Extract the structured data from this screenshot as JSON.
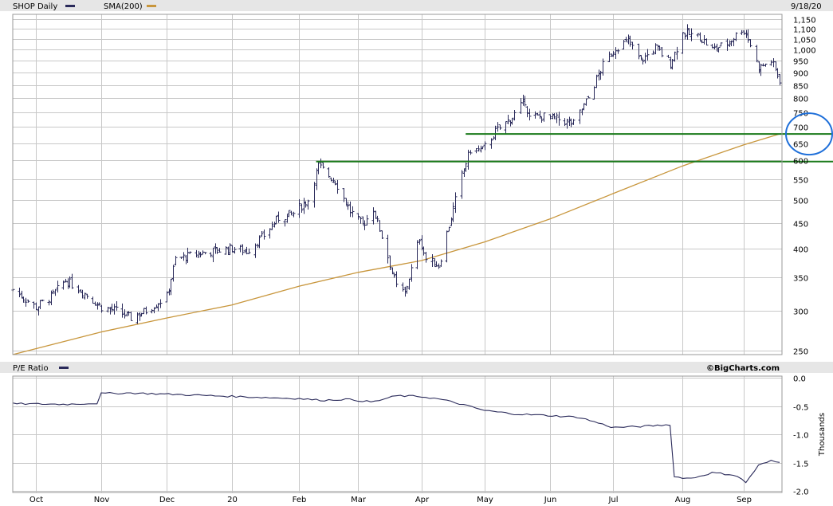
{
  "header": {
    "symbol_label": "SHOP Daily",
    "sma_label": "SMA(200)",
    "date": "9/18/20",
    "pe_label": "P/E Ratio",
    "credit": "©BigCharts.com"
  },
  "colors": {
    "price": "#2a2a5a",
    "sma": "#c8963c",
    "pe": "#2a2a5a",
    "support": "#1a7a1a",
    "annotation": "#1e6fd9",
    "header_bg": "#e6e6e6"
  },
  "chart_data": [
    {
      "type": "ohlc",
      "title": "SHOP Daily",
      "scale": "log",
      "ylim": [
        245,
        1160
      ],
      "yticks": [
        250,
        300,
        350,
        400,
        450,
        500,
        550,
        600,
        650,
        700,
        750,
        800,
        850,
        900,
        950,
        1000,
        1050,
        1100,
        1150
      ],
      "ytick_labels": [
        "250",
        "300",
        "350",
        "400",
        "450",
        "500",
        "550",
        "600",
        "650",
        "700",
        "750",
        "800",
        "850",
        "900",
        "950",
        "1,000",
        "1,050",
        "1,100",
        "1,150"
      ],
      "x_start": "2019-09-20",
      "x_end": "2020-09-18",
      "x_month_ticks": [
        {
          "date": "2019-10-01",
          "label": "Oct"
        },
        {
          "date": "2019-11-01",
          "label": "Nov"
        },
        {
          "date": "2019-12-02",
          "label": "Dec"
        },
        {
          "date": "2020-01-02",
          "label": "20"
        },
        {
          "date": "2020-02-03",
          "label": "Feb"
        },
        {
          "date": "2020-03-02",
          "label": "Mar"
        },
        {
          "date": "2020-04-01",
          "label": "Apr"
        },
        {
          "date": "2020-05-01",
          "label": "May"
        },
        {
          "date": "2020-06-01",
          "label": "Jun"
        },
        {
          "date": "2020-07-01",
          "label": "Jul"
        },
        {
          "date": "2020-08-03",
          "label": "Aug"
        },
        {
          "date": "2020-09-01",
          "label": "Sep"
        }
      ],
      "price_anchors": [
        [
          "2019-09-20",
          330
        ],
        [
          "2019-10-01",
          305
        ],
        [
          "2019-10-08",
          320
        ],
        [
          "2019-10-15",
          345
        ],
        [
          "2019-10-22",
          330
        ],
        [
          "2019-11-01",
          305
        ],
        [
          "2019-11-08",
          300
        ],
        [
          "2019-11-15",
          290
        ],
        [
          "2019-11-22",
          300
        ],
        [
          "2019-12-02",
          320
        ],
        [
          "2019-12-06",
          380
        ],
        [
          "2019-12-16",
          390
        ],
        [
          "2020-01-02",
          400
        ],
        [
          "2020-01-09",
          395
        ],
        [
          "2020-01-16",
          420
        ],
        [
          "2020-01-24",
          460
        ],
        [
          "2020-01-31",
          470
        ],
        [
          "2020-02-07",
          500
        ],
        [
          "2020-02-12",
          585
        ],
        [
          "2020-02-20",
          545
        ],
        [
          "2020-02-27",
          475
        ],
        [
          "2020-03-04",
          445
        ],
        [
          "2020-03-09",
          480
        ],
        [
          "2020-03-16",
          385
        ],
        [
          "2020-03-20",
          335
        ],
        [
          "2020-03-24",
          325
        ],
        [
          "2020-03-31",
          420
        ],
        [
          "2020-04-03",
          380
        ],
        [
          "2020-04-09",
          370
        ],
        [
          "2020-04-14",
          445
        ],
        [
          "2020-04-20",
          560
        ],
        [
          "2020-04-24",
          630
        ],
        [
          "2020-04-30",
          630
        ],
        [
          "2020-05-06",
          685
        ],
        [
          "2020-05-13",
          725
        ],
        [
          "2020-05-20",
          790
        ],
        [
          "2020-05-22",
          730
        ],
        [
          "2020-05-29",
          735
        ],
        [
          "2020-06-05",
          725
        ],
        [
          "2020-06-12",
          710
        ],
        [
          "2020-06-19",
          800
        ],
        [
          "2020-06-26",
          930
        ],
        [
          "2020-07-02",
          1010
        ],
        [
          "2020-07-08",
          1040
        ],
        [
          "2020-07-14",
          950
        ],
        [
          "2020-07-21",
          1010
        ],
        [
          "2020-07-28",
          940
        ],
        [
          "2020-08-03",
          1080
        ],
        [
          "2020-08-11",
          1060
        ],
        [
          "2020-08-17",
          1000
        ],
        [
          "2020-08-24",
          1030
        ],
        [
          "2020-08-31",
          1100
        ],
        [
          "2020-09-02",
          1080
        ],
        [
          "2020-09-08",
          920
        ],
        [
          "2020-09-14",
          950
        ],
        [
          "2020-09-18",
          870
        ]
      ],
      "sma_anchors": [
        [
          "2019-09-20",
          245
        ],
        [
          "2019-11-01",
          272
        ],
        [
          "2019-12-02",
          290
        ],
        [
          "2020-01-02",
          308
        ],
        [
          "2020-02-03",
          336
        ],
        [
          "2020-03-02",
          358
        ],
        [
          "2020-04-01",
          378
        ],
        [
          "2020-05-01",
          412
        ],
        [
          "2020-06-01",
          458
        ],
        [
          "2020-07-01",
          515
        ],
        [
          "2020-08-03",
          585
        ],
        [
          "2020-09-01",
          645
        ],
        [
          "2020-09-18",
          678
        ]
      ],
      "support_lines": [
        {
          "value": 678,
          "from": "2020-04-22"
        },
        {
          "value": 597,
          "from": "2020-02-11"
        }
      ],
      "annotation": {
        "shape": "circle",
        "value": 678,
        "note_levels": [
          650,
          700
        ]
      }
    },
    {
      "type": "line",
      "title": "P/E Ratio",
      "ylabel": "Thousands",
      "ylim": [
        -2.0,
        0.0
      ],
      "yticks": [
        0.0,
        -0.5,
        -1.0,
        -1.5,
        -2.0
      ],
      "ytick_labels": [
        "0.0",
        "-0.5",
        "-1.0",
        "-1.5",
        "-2.0"
      ],
      "series": [
        {
          "points": [
            [
              "2019-09-20",
              -0.46
            ],
            [
              "2019-10-15",
              -0.47
            ],
            [
              "2019-10-31",
              -0.45
            ],
            [
              "2019-11-01",
              -0.28
            ],
            [
              "2019-11-15",
              -0.27
            ],
            [
              "2019-12-02",
              -0.29
            ],
            [
              "2020-01-02",
              -0.33
            ],
            [
              "2020-02-03",
              -0.37
            ],
            [
              "2020-02-14",
              -0.4
            ],
            [
              "2020-02-25",
              -0.38
            ],
            [
              "2020-03-09",
              -0.43
            ],
            [
              "2020-03-20",
              -0.32
            ],
            [
              "2020-03-31",
              -0.33
            ],
            [
              "2020-04-10",
              -0.38
            ],
            [
              "2020-04-20",
              -0.47
            ],
            [
              "2020-05-01",
              -0.58
            ],
            [
              "2020-05-15",
              -0.64
            ],
            [
              "2020-06-01",
              -0.67
            ],
            [
              "2020-06-15",
              -0.7
            ],
            [
              "2020-07-01",
              -0.88
            ],
            [
              "2020-07-15",
              -0.86
            ],
            [
              "2020-07-28",
              -0.83
            ],
            [
              "2020-07-29",
              -1.75
            ],
            [
              "2020-08-07",
              -1.78
            ],
            [
              "2020-08-17",
              -1.68
            ],
            [
              "2020-08-28",
              -1.72
            ],
            [
              "2020-09-02",
              -1.85
            ],
            [
              "2020-09-08",
              -1.55
            ],
            [
              "2020-09-14",
              -1.47
            ],
            [
              "2020-09-18",
              -1.5
            ]
          ]
        }
      ]
    }
  ]
}
